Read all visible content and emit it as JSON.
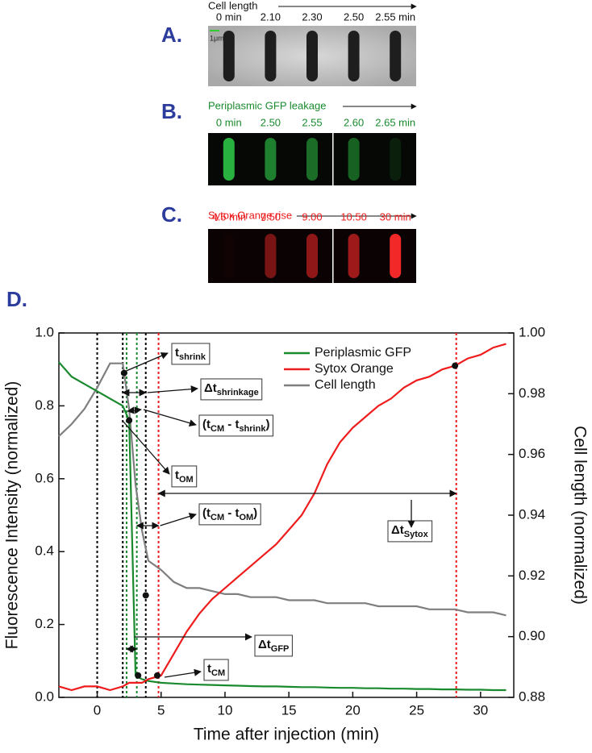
{
  "panels": [
    {
      "label": "A.",
      "title": "Cell length",
      "times": [
        "0 min",
        "2.10",
        "2.30",
        "2.50",
        "2.55 min"
      ],
      "scale": "1μm"
    },
    {
      "label": "B.",
      "title": "Periplasmic GFP leakage",
      "times": [
        "0 min",
        "2.50",
        "2.55",
        "2.60",
        "2.65 min"
      ]
    },
    {
      "label": "C.",
      "title": "Sytox Orange rise",
      "times": [
        "4.5 min",
        "7.50",
        "9.00",
        "10.50",
        "30 min"
      ]
    }
  ],
  "chart_data": {
    "type": "line",
    "panel_label": "D.",
    "xlabel": "Time after injection (min)",
    "ylabel": "Fluorescence Intensity (normalized)",
    "y2label": "Cell length (normalized)",
    "x": [
      -3,
      -2,
      -1,
      0,
      1,
      2,
      2.5,
      3,
      3.5,
      4,
      5,
      6,
      7,
      8,
      9,
      10,
      11,
      12,
      13,
      14,
      15,
      16,
      17,
      18,
      19,
      20,
      21,
      22,
      23,
      24,
      25,
      26,
      27,
      28,
      29,
      30,
      31,
      32
    ],
    "series": [
      {
        "name": "Periplasmic GFP",
        "color": "#1a8a2e",
        "values": [
          0.92,
          0.88,
          0.86,
          0.84,
          0.82,
          0.8,
          0.76,
          0.06,
          0.05,
          0.045,
          0.04,
          0.038,
          0.036,
          0.035,
          0.034,
          0.033,
          0.032,
          0.031,
          0.03,
          0.03,
          0.029,
          0.028,
          0.028,
          0.027,
          0.026,
          0.026,
          0.025,
          0.025,
          0.024,
          0.024,
          0.023,
          0.023,
          0.022,
          0.022,
          0.021,
          0.021,
          0.02,
          0.02
        ]
      },
      {
        "name": "Sytox Orange",
        "color": "#ee1c1c",
        "values": [
          0.03,
          0.02,
          0.03,
          0.03,
          0.02,
          0.03,
          0.04,
          0.04,
          0.04,
          0.05,
          0.06,
          0.12,
          0.18,
          0.23,
          0.27,
          0.3,
          0.33,
          0.36,
          0.39,
          0.42,
          0.46,
          0.5,
          0.56,
          0.64,
          0.7,
          0.74,
          0.77,
          0.8,
          0.82,
          0.85,
          0.87,
          0.88,
          0.9,
          0.91,
          0.93,
          0.94,
          0.96,
          0.97
        ]
      },
      {
        "name": "Cell length",
        "color": "#7f7f7f",
        "axis": "y2",
        "values": [
          0.966,
          0.97,
          0.975,
          0.982,
          0.99,
          0.99,
          0.975,
          0.95,
          0.935,
          0.925,
          0.922,
          0.918,
          0.916,
          0.916,
          0.915,
          0.914,
          0.914,
          0.913,
          0.913,
          0.913,
          0.912,
          0.912,
          0.912,
          0.911,
          0.911,
          0.911,
          0.911,
          0.91,
          0.91,
          0.91,
          0.91,
          0.909,
          0.909,
          0.909,
          0.908,
          0.908,
          0.908,
          0.907
        ]
      }
    ],
    "xlim": [
      -3,
      32.6
    ],
    "xticks": [
      0,
      5,
      10,
      15,
      20,
      25,
      30
    ],
    "ylim": [
      0,
      1
    ],
    "yticks": [
      {
        "value": 0,
        "label": "0.0"
      },
      0.2,
      0.4,
      0.6,
      0.8,
      {
        "value": 1,
        "label": "1.0"
      }
    ],
    "y2lim": [
      0.88,
      1.0
    ],
    "y2ticks": [
      0.88,
      {
        "value": 0.9,
        "label": "0.90"
      },
      0.92,
      0.94,
      0.96,
      0.98,
      {
        "value": 1.0,
        "label": "1.00"
      }
    ],
    "legend": "upper center",
    "vlines": [
      {
        "x": 0,
        "color": "#000000"
      },
      {
        "x": 2,
        "color": "#000000"
      },
      {
        "x": 2.3,
        "color": "#1a8a2e"
      },
      {
        "x": 3.1,
        "color": "#1a8a2e"
      },
      {
        "x": 3.8,
        "color": "#000000"
      },
      {
        "x": 4.8,
        "color": "#ee1c1c"
      },
      {
        "x": 28.1,
        "color": "#ee1c1c"
      }
    ],
    "points": [
      {
        "x": 2.1,
        "y": 0.89
      },
      {
        "x": 2.5,
        "y": 0.76
      },
      {
        "x": 3.8,
        "y": 0.28
      },
      {
        "x": 3.2,
        "y": 0.06
      },
      {
        "x": 4.7,
        "y": 0.06
      },
      {
        "x": 28,
        "y": 0.91
      }
    ],
    "annotations": [
      {
        "parts": [
          "t",
          "shrink"
        ]
      },
      {
        "parts": [
          "Δt",
          "shrinkage"
        ]
      },
      {
        "parts": [
          "(t",
          "CM",
          " - t",
          "shrink",
          ")"
        ]
      },
      {
        "parts": [
          "t",
          "OM"
        ]
      },
      {
        "parts": [
          "(t",
          "CM",
          " - t",
          "OM",
          ")"
        ]
      },
      {
        "parts": [
          "Δt",
          "Sytox"
        ]
      },
      {
        "parts": [
          "Δt",
          "GFP"
        ]
      },
      {
        "parts": [
          "t",
          "CM"
        ]
      }
    ]
  }
}
